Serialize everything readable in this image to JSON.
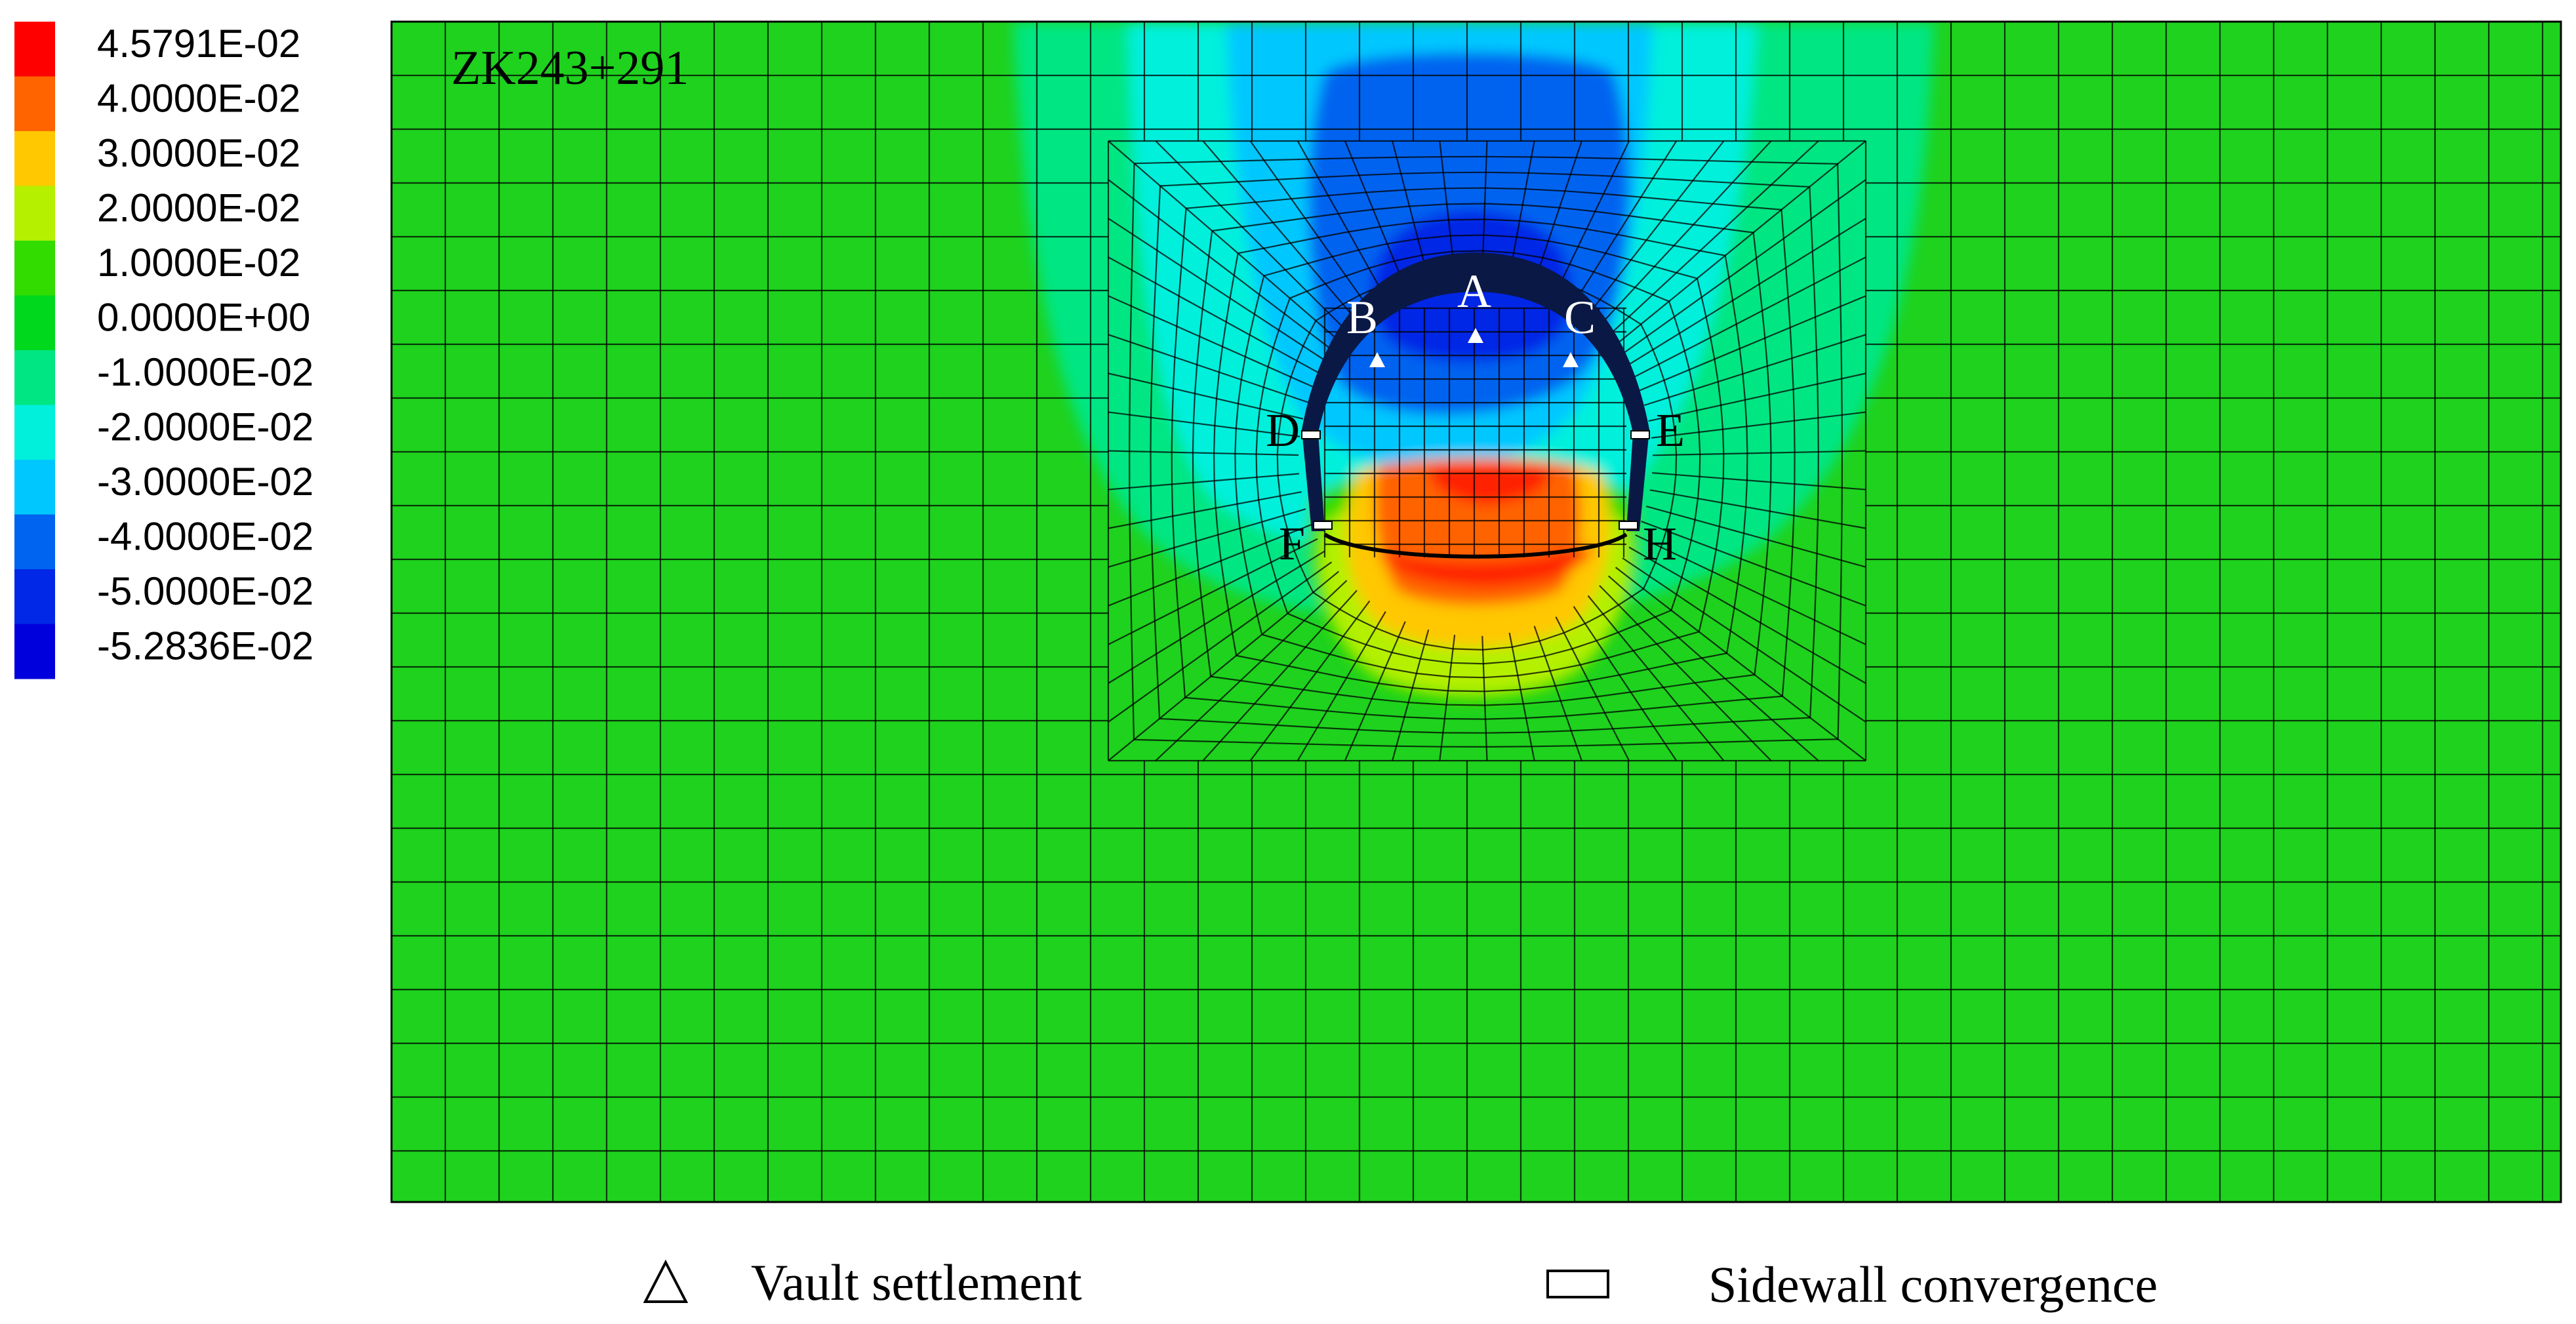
{
  "section_label": "ZK243+291",
  "legend": {
    "entries": [
      {
        "label": "4.5791E-02",
        "color": "#ff0000"
      },
      {
        "label": "4.0000E-02",
        "color": "#ff6400"
      },
      {
        "label": "3.0000E-02",
        "color": "#ffc800"
      },
      {
        "label": "2.0000E-02",
        "color": "#b4f000"
      },
      {
        "label": "1.0000E-02",
        "color": "#32dc00"
      },
      {
        "label": "0.0000E+00",
        "color": "#00d81e"
      },
      {
        "label": "-1.0000E-02",
        "color": "#00e682"
      },
      {
        "label": "-2.0000E-02",
        "color": "#00f0dc"
      },
      {
        "label": "-3.0000E-02",
        "color": "#00c8ff"
      },
      {
        "label": "-4.0000E-02",
        "color": "#0064f0"
      },
      {
        "label": "-5.0000E-02",
        "color": "#0028e6"
      },
      {
        "label": "-5.2836E-02",
        "color": "#0000dc"
      }
    ]
  },
  "monitoring_points": {
    "vault": [
      "A",
      "B",
      "C"
    ],
    "sidewall": [
      "D",
      "E",
      "F",
      "H"
    ]
  },
  "captions": {
    "vault_settlement": "Vault settlement",
    "sidewall_convergence": "Sidewall convergence"
  },
  "colors": {
    "background_field": "#1ed21e",
    "lining": "#0a1846",
    "mesh": "#000000"
  }
}
